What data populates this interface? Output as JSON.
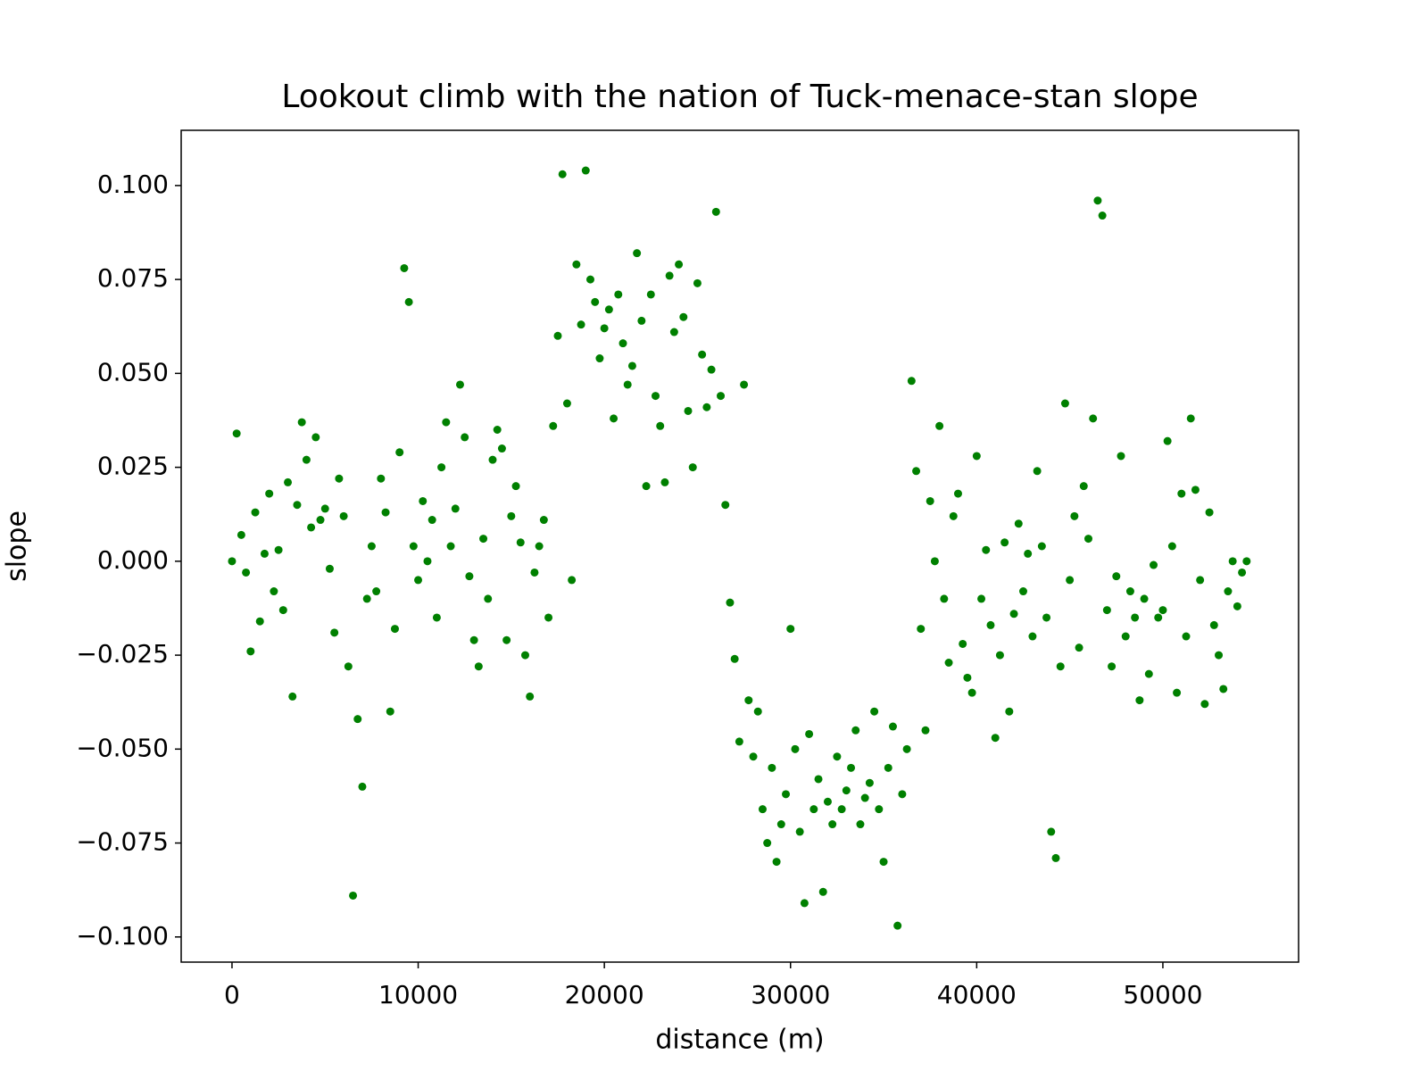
{
  "chart_data": {
    "type": "scatter",
    "title": "Lookout climb with the nation of Tuck-menace-stan slope",
    "x_label": "distance (m)",
    "y_label": "slope",
    "color": "#008000",
    "xlim": [
      -2730,
      57290
    ],
    "ylim": [
      -0.1067,
      0.1147
    ],
    "xticks": [
      0,
      10000,
      20000,
      30000,
      40000,
      50000
    ],
    "yticks": [
      {
        "value": -0.1,
        "label": "−0.100"
      },
      {
        "value": -0.075,
        "label": "−0.075"
      },
      {
        "value": -0.05,
        "label": "−0.050"
      },
      {
        "value": -0.025,
        "label": "−0.025"
      },
      {
        "value": 0,
        "label": "0.000"
      },
      {
        "value": 0.025,
        "label": "0.025"
      },
      {
        "value": 0.05,
        "label": "0.050"
      },
      {
        "value": 0.075,
        "label": "0.075"
      },
      {
        "value": 0.1,
        "label": "0.100"
      }
    ],
    "x": [
      0,
      250,
      500,
      750,
      1000,
      1250,
      1500,
      1750,
      2000,
      2250,
      2500,
      2750,
      3000,
      3250,
      3500,
      3750,
      4000,
      4250,
      4500,
      4750,
      5000,
      5250,
      5500,
      5750,
      6000,
      6250,
      6500,
      6750,
      7000,
      7250,
      7500,
      7750,
      8000,
      8250,
      8500,
      8750,
      9000,
      9250,
      9500,
      9750,
      10000,
      10250,
      10500,
      10750,
      11000,
      11250,
      11500,
      11750,
      12000,
      12250,
      12500,
      12750,
      13000,
      13250,
      13500,
      13750,
      14000,
      14250,
      14500,
      14750,
      15000,
      15250,
      15500,
      15750,
      16000,
      16250,
      16500,
      16750,
      17000,
      17250,
      17500,
      17750,
      18000,
      18250,
      18500,
      18750,
      19000,
      19250,
      19500,
      19750,
      20000,
      20250,
      20500,
      20750,
      21000,
      21250,
      21500,
      21750,
      22000,
      22250,
      22500,
      22750,
      23000,
      23250,
      23500,
      23750,
      24000,
      24250,
      24500,
      24750,
      25000,
      25250,
      25500,
      25750,
      26000,
      26250,
      26500,
      26750,
      27000,
      27250,
      27500,
      27750,
      28000,
      28250,
      28500,
      28750,
      29000,
      29250,
      29500,
      29750,
      30000,
      30250,
      30500,
      30750,
      31000,
      31250,
      31500,
      31750,
      32000,
      32250,
      32500,
      32750,
      33000,
      33250,
      33500,
      33750,
      34000,
      34250,
      34500,
      34750,
      35000,
      35250,
      35500,
      35750,
      36000,
      36250,
      36500,
      36750,
      37000,
      37250,
      37500,
      37750,
      38000,
      38250,
      38500,
      38750,
      39000,
      39250,
      39500,
      39750,
      40000,
      40250,
      40500,
      40750,
      41000,
      41250,
      41500,
      41750,
      42000,
      42250,
      42500,
      42750,
      43000,
      43250,
      43500,
      43750,
      44000,
      44250,
      44500,
      44750,
      45000,
      45250,
      45500,
      45750,
      46000,
      46250,
      46500,
      46750,
      47000,
      47250,
      47500,
      47750,
      48000,
      48250,
      48500,
      48750,
      49000,
      49250,
      49500,
      49750,
      50000,
      50250,
      50500,
      50750,
      51000,
      51250,
      51500,
      51750,
      52000,
      52250,
      52500,
      52750,
      53000,
      53250,
      53500,
      53750,
      54000,
      54250,
      54500
    ],
    "y": [
      0,
      0.034,
      0.007,
      -0.003,
      -0.024,
      0.013,
      -0.016,
      0.002,
      0.018,
      -0.008,
      0.003,
      -0.013,
      0.021,
      -0.036,
      0.015,
      0.037,
      0.027,
      0.009,
      0.033,
      0.011,
      0.014,
      -0.002,
      -0.019,
      0.022,
      0.012,
      -0.028,
      -0.089,
      -0.042,
      -0.06,
      -0.01,
      0.004,
      -0.008,
      0.022,
      0.013,
      -0.04,
      -0.018,
      0.029,
      0.078,
      0.069,
      0.004,
      -0.005,
      0.016,
      0,
      0.011,
      -0.015,
      0.025,
      0.037,
      0.004,
      0.014,
      0.047,
      0.033,
      -0.004,
      -0.021,
      -0.028,
      0.006,
      -0.01,
      0.027,
      0.035,
      0.03,
      -0.021,
      0.012,
      0.02,
      0.005,
      -0.025,
      -0.036,
      -0.003,
      0.004,
      0.011,
      -0.015,
      0.036,
      0.06,
      0.103,
      0.042,
      -0.005,
      0.079,
      0.063,
      0.104,
      0.075,
      0.069,
      0.054,
      0.062,
      0.067,
      0.038,
      0.071,
      0.058,
      0.047,
      0.052,
      0.082,
      0.064,
      0.02,
      0.071,
      0.044,
      0.036,
      0.021,
      0.076,
      0.061,
      0.079,
      0.065,
      0.04,
      0.025,
      0.074,
      0.055,
      0.041,
      0.051,
      0.093,
      0.044,
      0.015,
      -0.011,
      -0.026,
      -0.048,
      0.047,
      -0.037,
      -0.052,
      -0.04,
      -0.066,
      -0.075,
      -0.055,
      -0.08,
      -0.07,
      -0.062,
      -0.018,
      -0.05,
      -0.072,
      -0.091,
      -0.046,
      -0.066,
      -0.058,
      -0.088,
      -0.064,
      -0.07,
      -0.052,
      -0.066,
      -0.061,
      -0.055,
      -0.045,
      -0.07,
      -0.063,
      -0.059,
      -0.04,
      -0.066,
      -0.08,
      -0.055,
      -0.044,
      -0.097,
      -0.062,
      -0.05,
      0.048,
      0.024,
      -0.018,
      -0.045,
      0.016,
      0,
      0.036,
      -0.01,
      -0.027,
      0.012,
      0.018,
      -0.022,
      -0.031,
      -0.035,
      0.028,
      -0.01,
      0.003,
      -0.017,
      -0.047,
      -0.025,
      0.005,
      -0.04,
      -0.014,
      0.01,
      -0.008,
      0.002,
      -0.02,
      0.024,
      0.004,
      -0.015,
      -0.072,
      -0.079,
      -0.028,
      0.042,
      -0.005,
      0.012,
      -0.023,
      0.02,
      0.006,
      0.038,
      0.096,
      0.092,
      -0.013,
      -0.028,
      -0.004,
      0.028,
      -0.02,
      -0.008,
      -0.015,
      -0.037,
      -0.01,
      -0.03,
      -0.001,
      -0.015,
      -0.013,
      0.032,
      0.004,
      -0.035,
      0.018,
      -0.02,
      0.038,
      0.019,
      -0.005,
      -0.038,
      0.013,
      -0.017,
      -0.025,
      -0.034,
      -0.008,
      0,
      -0.012,
      -0.003,
      0
    ]
  }
}
